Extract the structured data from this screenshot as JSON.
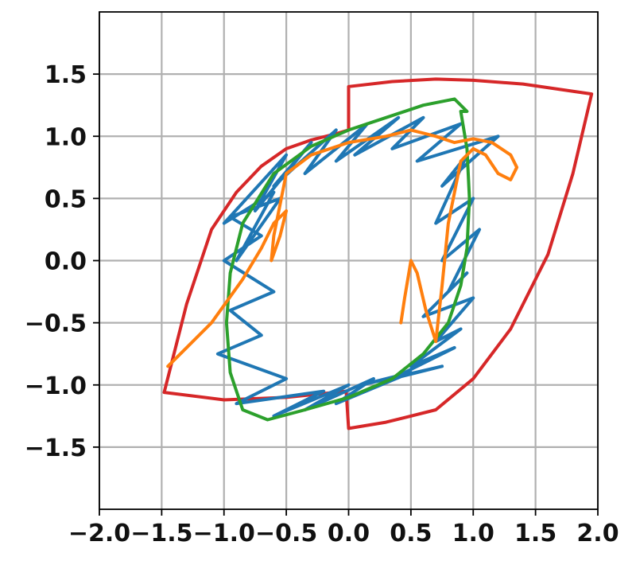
{
  "chart_data": {
    "type": "line",
    "title": "",
    "xlabel": "",
    "ylabel": "",
    "xlim": [
      -2.0,
      2.0
    ],
    "ylim": [
      -2.0,
      2.0
    ],
    "grid": true,
    "legend": "none",
    "x_ticks": [
      -2.0,
      -1.5,
      -1.0,
      -0.5,
      0.0,
      0.5,
      1.0,
      1.5,
      2.0
    ],
    "x_tick_labels": [
      "−2.0",
      "−1.5",
      "−1.0",
      "−0.5",
      "0.0",
      "0.5",
      "1.0",
      "1.5",
      "2.0"
    ],
    "y_ticks": [
      -1.5,
      -1.0,
      -0.5,
      0.0,
      0.5,
      1.0,
      1.5
    ],
    "y_tick_labels": [
      "−1.5",
      "−1.0",
      "−0.5",
      "0.0",
      "0.5",
      "1.0",
      "1.5"
    ],
    "series": [
      {
        "color": "#d62728",
        "x": [
          0.0,
          0.0,
          0.35,
          0.7,
          1.0,
          1.4,
          1.95,
          1.8,
          1.6,
          1.3,
          1.0,
          0.7,
          0.3,
          0.0,
          -0.02,
          -0.5,
          -1.0,
          -1.48,
          -1.3,
          -1.1,
          -0.9,
          -0.7,
          -0.5,
          -0.3,
          -0.1,
          0.0
        ],
        "y": [
          1.05,
          1.4,
          1.44,
          1.46,
          1.45,
          1.42,
          1.34,
          0.7,
          0.05,
          -0.55,
          -0.95,
          -1.2,
          -1.3,
          -1.35,
          -1.05,
          -1.1,
          -1.12,
          -1.06,
          -0.35,
          0.25,
          0.55,
          0.76,
          0.9,
          0.97,
          1.02,
          1.05
        ]
      },
      {
        "color": "#1f77b4",
        "x": [
          -0.9,
          -0.6,
          -1.0,
          -0.5,
          -0.75,
          -0.3,
          -0.6,
          -0.1,
          -0.35,
          0.15,
          -0.1,
          0.4,
          0.05,
          0.6,
          0.35,
          0.9,
          0.55,
          1.2,
          0.75,
          0.95,
          0.7,
          1.0,
          0.75,
          1.05,
          0.8,
          0.95,
          0.6,
          1.0,
          0.7,
          0.9,
          0.5,
          0.85,
          0.35,
          0.75,
          0.1,
          0.5,
          -0.1,
          0.2,
          -0.35,
          0.0,
          -0.6,
          -0.2,
          -0.9,
          -0.5,
          -1.05,
          -0.7,
          -0.95,
          -0.6,
          -1.0,
          -0.7,
          -0.95,
          -0.55,
          -0.9
        ],
        "y": [
          0.0,
          0.55,
          0.3,
          0.85,
          0.4,
          0.95,
          0.6,
          1.05,
          0.7,
          1.1,
          0.8,
          1.15,
          0.85,
          1.15,
          0.9,
          1.1,
          0.8,
          1.0,
          0.6,
          0.85,
          0.3,
          0.5,
          0.0,
          0.25,
          -0.25,
          -0.1,
          -0.45,
          -0.3,
          -0.65,
          -0.55,
          -0.85,
          -0.7,
          -0.95,
          -0.85,
          -1.0,
          -0.9,
          -1.15,
          -0.95,
          -1.2,
          -1.0,
          -1.25,
          -1.05,
          -1.15,
          -0.95,
          -0.75,
          -0.6,
          -0.4,
          -0.25,
          0.0,
          0.2,
          0.35,
          0.5,
          0.0
        ]
      },
      {
        "color": "#2ca02c",
        "x": [
          0.9,
          0.95,
          0.97,
          0.95,
          0.9,
          0.8,
          0.6,
          0.35,
          0.0,
          -0.35,
          -0.65,
          -0.85,
          -0.95,
          -0.98,
          -0.95,
          -0.85,
          -0.6,
          -0.3,
          0.0,
          0.3,
          0.6,
          0.85,
          0.95,
          0.9
        ],
        "y": [
          1.2,
          0.9,
          0.5,
          0.1,
          -0.2,
          -0.5,
          -0.75,
          -0.95,
          -1.1,
          -1.2,
          -1.28,
          -1.2,
          -0.9,
          -0.5,
          -0.1,
          0.3,
          0.7,
          0.92,
          1.05,
          1.15,
          1.25,
          1.3,
          1.2,
          1.2
        ]
      },
      {
        "color": "#ff7f0e",
        "x": [
          -1.45,
          -1.3,
          -1.1,
          -0.85,
          -0.7,
          -0.6,
          -0.5,
          -0.55,
          -0.62,
          -0.6,
          -0.5,
          -0.3,
          0.0,
          0.3,
          0.5,
          0.7,
          0.85,
          1.0,
          1.15,
          1.3,
          1.35,
          1.3,
          1.2,
          1.1,
          1.0,
          0.9,
          0.8,
          0.75,
          0.7,
          0.62,
          0.55,
          0.5,
          0.45,
          0.42
        ],
        "y": [
          -0.85,
          -0.7,
          -0.5,
          -0.15,
          0.1,
          0.3,
          0.4,
          0.2,
          0.0,
          0.2,
          0.7,
          0.85,
          0.95,
          1.0,
          1.05,
          1.0,
          0.95,
          0.98,
          0.95,
          0.85,
          0.75,
          0.65,
          0.7,
          0.85,
          0.9,
          0.8,
          0.3,
          -0.2,
          -0.65,
          -0.4,
          -0.1,
          0.0,
          -0.3,
          -0.5
        ]
      }
    ]
  }
}
